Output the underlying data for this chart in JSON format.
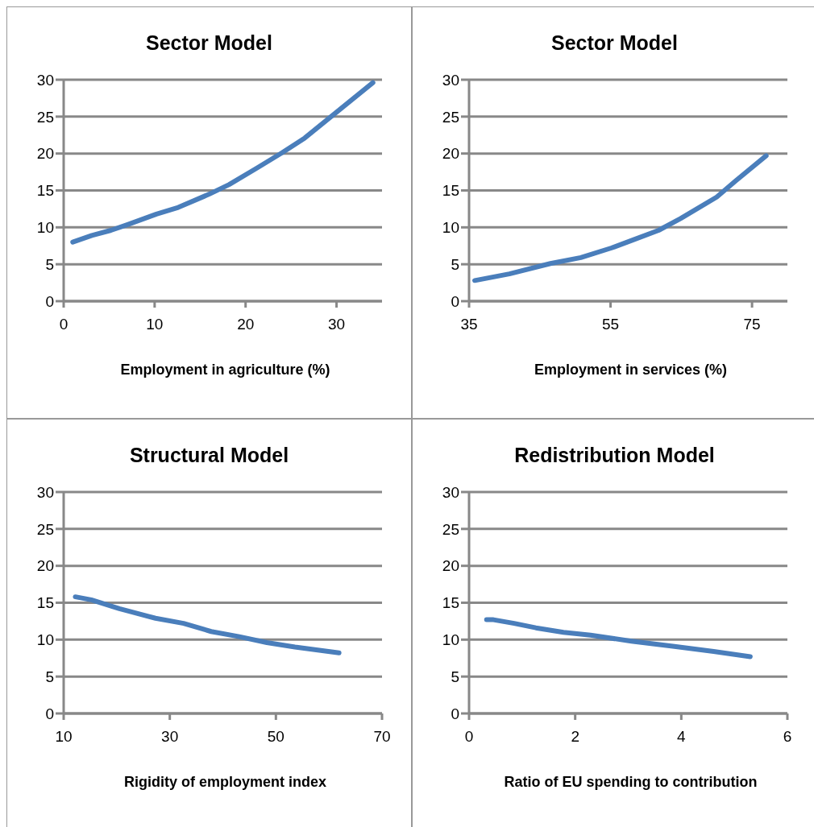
{
  "chart_data": [
    {
      "type": "line",
      "title": "Sector Model",
      "xlabel": "Employment in agriculture (%)",
      "x": [
        1.0,
        3.1,
        5.2,
        7.1,
        10.2,
        12.6,
        16.0,
        18.2,
        21.2,
        24.0,
        26.5,
        29.8,
        34.0
      ],
      "series": [
        {
          "color": "#4a7ebb",
          "values": [
            8.0,
            8.9,
            9.6,
            10.4,
            11.8,
            12.7,
            14.5,
            15.8,
            18.0,
            20.1,
            22.1,
            25.4,
            29.6
          ]
        }
      ],
      "xlim": [
        0,
        35
      ],
      "xticks": [
        0,
        10,
        20,
        30
      ],
      "ylim": [
        0,
        30
      ],
      "yticks": [
        0,
        5,
        10,
        15,
        20,
        25,
        30
      ],
      "grid": "y",
      "marker": "none",
      "legend": false
    },
    {
      "type": "line",
      "title": "Sector Model",
      "xlabel": "Employment in services (%)",
      "x": [
        35.8,
        40.7,
        46.5,
        50.8,
        55.1,
        58.2,
        61.8,
        64.9,
        70.0,
        72.7,
        77.0
      ],
      "series": [
        {
          "color": "#4a7ebb",
          "values": [
            2.8,
            3.7,
            5.1,
            5.9,
            7.2,
            8.3,
            9.6,
            11.2,
            14.1,
            16.3,
            19.7
          ]
        }
      ],
      "xlim": [
        35,
        80
      ],
      "xticks": [
        35,
        55,
        75
      ],
      "ylim": [
        0,
        30
      ],
      "yticks": [
        0,
        5,
        10,
        15,
        20,
        25,
        30
      ],
      "grid": "y",
      "marker": "none",
      "legend": false
    },
    {
      "type": "line",
      "title": "Structural Model",
      "xlabel": "Rigidity of employment index",
      "x": [
        12.2,
        15.2,
        20.5,
        27.3,
        32.6,
        37.8,
        43.1,
        48.3,
        53.6,
        61.9
      ],
      "series": [
        {
          "color": "#4a7ebb",
          "values": [
            15.8,
            15.4,
            14.2,
            12.9,
            12.2,
            11.1,
            10.4,
            9.6,
            9.0,
            8.2
          ]
        }
      ],
      "xlim": [
        10,
        70
      ],
      "xticks": [
        10,
        30,
        50,
        70
      ],
      "ylim": [
        0,
        30
      ],
      "yticks": [
        0,
        5,
        10,
        15,
        20,
        25,
        30
      ],
      "grid": "y",
      "marker": "none",
      "legend": false
    },
    {
      "type": "line",
      "title": "Redistribution Model",
      "xlabel": "Ratio of EU spending to contribution",
      "x": [
        0.33,
        0.46,
        0.85,
        1.26,
        1.78,
        2.29,
        3.06,
        3.84,
        4.61,
        5.3
      ],
      "series": [
        {
          "color": "#4a7ebb",
          "values": [
            12.7,
            12.7,
            12.2,
            11.6,
            11.0,
            10.6,
            9.8,
            9.1,
            8.4,
            7.7
          ]
        }
      ],
      "xlim": [
        0,
        6
      ],
      "xticks": [
        0,
        2,
        4,
        6
      ],
      "ylim": [
        0,
        30
      ],
      "yticks": [
        0,
        5,
        10,
        15,
        20,
        25,
        30
      ],
      "grid": "y",
      "marker": "none",
      "legend": false
    }
  ]
}
